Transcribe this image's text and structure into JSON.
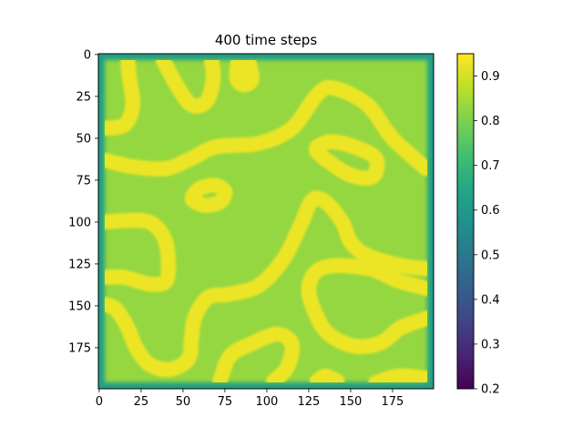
{
  "chart_data": {
    "type": "heatmap",
    "title": "400 time steps",
    "xlabel": "",
    "ylabel": "",
    "grid": false,
    "x_range": [
      0,
      199
    ],
    "y_range": [
      0,
      199
    ],
    "y_inverted": true,
    "x_ticks": [
      "0",
      "25",
      "50",
      "75",
      "100",
      "125",
      "150",
      "175"
    ],
    "y_ticks": [
      "0",
      "25",
      "50",
      "75",
      "100",
      "125",
      "150",
      "175"
    ],
    "colorbar": {
      "colormap": "viridis",
      "range": [
        0.2,
        0.95
      ],
      "ticks": [
        "0.2",
        "0.3",
        "0.4",
        "0.5",
        "0.6",
        "0.7",
        "0.8",
        "0.9"
      ]
    },
    "field": {
      "background_value": 0.83,
      "boundary_value": 0.62,
      "stripe_value": 0.93,
      "stripe_half_width": 4,
      "stripes": [
        [
          [
            2,
            44
          ],
          [
            15,
            42
          ],
          [
            20,
            30
          ],
          [
            18,
            14
          ],
          [
            17,
            3
          ]
        ],
        [
          [
            38,
            3
          ],
          [
            46,
            18
          ],
          [
            55,
            30
          ],
          [
            64,
            28
          ],
          [
            68,
            15
          ],
          [
            67,
            3
          ]
        ],
        [
          [
            83,
            3
          ],
          [
            82,
            14
          ],
          [
            86,
            18
          ],
          [
            91,
            15
          ],
          [
            89,
            3
          ]
        ],
        [
          [
            3,
            63
          ],
          [
            20,
            67
          ],
          [
            40,
            68
          ],
          [
            55,
            62
          ],
          [
            70,
            55
          ],
          [
            95,
            53
          ],
          [
            115,
            44
          ],
          [
            130,
            24
          ],
          [
            140,
            20
          ],
          [
            160,
            30
          ],
          [
            175,
            50
          ],
          [
            195,
            68
          ]
        ],
        [
          [
            130,
            55
          ],
          [
            138,
            52
          ],
          [
            152,
            55
          ],
          [
            165,
            62
          ],
          [
            163,
            73
          ],
          [
            150,
            72
          ],
          [
            137,
            64
          ],
          [
            130,
            58
          ],
          [
            130,
            55
          ]
        ],
        [
          [
            56,
            84
          ],
          [
            60,
            80
          ],
          [
            69,
            78
          ],
          [
            75,
            82
          ],
          [
            72,
            88
          ],
          [
            63,
            90
          ],
          [
            56,
            87
          ],
          [
            56,
            84
          ]
        ],
        [
          [
            3,
            100
          ],
          [
            18,
            99
          ],
          [
            30,
            100
          ],
          [
            38,
            108
          ],
          [
            41,
            120
          ],
          [
            40,
            135
          ],
          [
            30,
            137
          ],
          [
            15,
            133
          ],
          [
            3,
            133
          ]
        ],
        [
          [
            3,
            149
          ],
          [
            10,
            152
          ],
          [
            17,
            163
          ],
          [
            22,
            175
          ],
          [
            30,
            185
          ],
          [
            42,
            188
          ],
          [
            53,
            182
          ],
          [
            55,
            170
          ],
          [
            57,
            157
          ],
          [
            65,
            145
          ],
          [
            78,
            143
          ],
          [
            95,
            138
          ],
          [
            110,
            122
          ],
          [
            120,
            102
          ],
          [
            127,
            87
          ],
          [
            135,
            88
          ],
          [
            145,
            100
          ],
          [
            150,
            112
          ],
          [
            160,
            120
          ],
          [
            180,
            126
          ],
          [
            197,
            128
          ]
        ],
        [
          [
            72,
            195
          ],
          [
            78,
            180
          ],
          [
            90,
            173
          ],
          [
            106,
            167
          ],
          [
            115,
            173
          ],
          [
            112,
            187
          ],
          [
            104,
            195
          ]
        ],
        [
          [
            197,
            157
          ],
          [
            180,
            163
          ],
          [
            168,
            172
          ],
          [
            152,
            174
          ],
          [
            136,
            166
          ],
          [
            128,
            152
          ],
          [
            125,
            140
          ],
          [
            129,
            130
          ],
          [
            140,
            126
          ],
          [
            162,
            128
          ],
          [
            178,
            135
          ],
          [
            197,
            140
          ]
        ],
        [
          [
            130,
            195
          ],
          [
            135,
            192
          ],
          [
            142,
            195
          ]
        ],
        [
          [
            165,
            196
          ],
          [
            178,
            192
          ],
          [
            195,
            193
          ]
        ]
      ]
    }
  }
}
